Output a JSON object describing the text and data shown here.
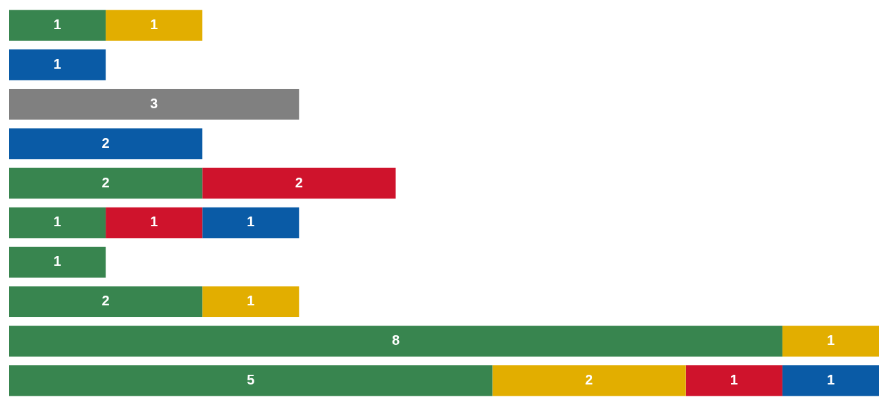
{
  "chart_data": {
    "type": "bar",
    "orientation": "horizontal",
    "stacked": true,
    "data_labels": true,
    "legend": false,
    "categories": [
      null,
      null,
      null,
      null,
      null,
      null,
      null,
      null,
      null,
      null
    ],
    "series": [
      {
        "color": "#38854f",
        "values": [
          1,
          null,
          null,
          null,
          2,
          1,
          1,
          2,
          8,
          5
        ]
      },
      {
        "color": "#e2ae00",
        "values": [
          1,
          null,
          null,
          null,
          null,
          null,
          null,
          1,
          1,
          2
        ]
      },
      {
        "color": "#cf132c",
        "values": [
          null,
          null,
          null,
          null,
          2,
          1,
          null,
          null,
          null,
          1
        ]
      },
      {
        "color": "#0a5ba6",
        "values": [
          null,
          1,
          null,
          2,
          null,
          1,
          null,
          null,
          null,
          1
        ]
      },
      {
        "color": "#808080",
        "values": [
          null,
          null,
          3,
          null,
          null,
          null,
          null,
          null,
          null,
          null
        ]
      }
    ]
  }
}
